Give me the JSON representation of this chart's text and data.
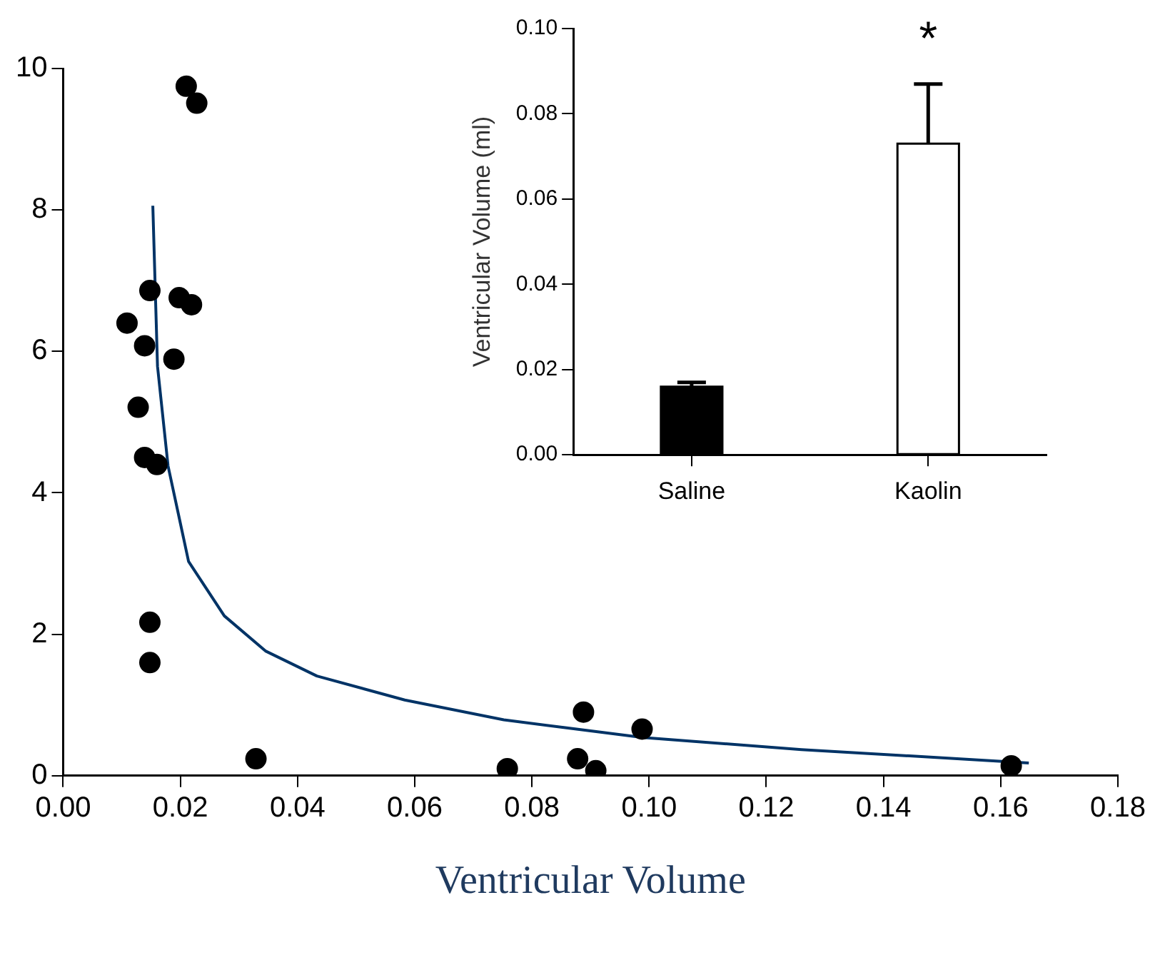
{
  "chart_data": [
    {
      "type": "scatter",
      "xlabel": "Ventricular Volume",
      "xlim": [
        0,
        0.18
      ],
      "xticks": [
        {
          "value": 0,
          "label": "0.00"
        },
        {
          "value": 0.02,
          "label": "0.02"
        },
        {
          "value": 0.04,
          "label": "0.04"
        },
        {
          "value": 0.06,
          "label": "0.06"
        },
        {
          "value": 0.08,
          "label": "0.08"
        },
        {
          "value": 0.1,
          "label": "0.10"
        },
        {
          "value": 0.12,
          "label": "0.12"
        },
        {
          "value": 0.14,
          "label": "0.14"
        },
        {
          "value": 0.16,
          "label": "0.16"
        },
        {
          "value": 0.18,
          "label": "0.18"
        }
      ],
      "ylim": [
        0,
        10
      ],
      "yticks": [
        0,
        2,
        4,
        6,
        8,
        10
      ],
      "series": [
        {
          "type": "scatter",
          "marker": "circle",
          "color": "#000000",
          "x": [
            0.021,
            0.0228,
            0.0148,
            0.0109,
            0.0139,
            0.0198,
            0.0219,
            0.0189,
            0.0128,
            0.0139,
            0.016,
            0.0148,
            0.0148,
            0.0329,
            0.0758,
            0.0888,
            0.0878,
            0.0909,
            0.0988,
            0.1618
          ],
          "values": [
            9.75,
            9.51,
            6.86,
            6.4,
            6.08,
            6.76,
            6.66,
            5.89,
            5.21,
            4.5,
            4.4,
            2.17,
            1.6,
            0.24,
            0.1,
            0.9,
            0.24,
            0.07,
            0.66,
            0.14
          ]
        },
        {
          "type": "line",
          "color": "#003366",
          "x": [
            0.0153,
            0.0161,
            0.0179,
            0.0214,
            0.0275,
            0.0346,
            0.0433,
            0.0583,
            0.0752,
            0.0989,
            0.126,
            0.1648
          ],
          "values": [
            8.06,
            5.79,
            4.38,
            3.03,
            2.26,
            1.76,
            1.41,
            1.07,
            0.79,
            0.54,
            0.37,
            0.18
          ]
        }
      ]
    },
    {
      "type": "bar",
      "ylabel": "Ventricular Volume (ml)",
      "categories": [
        "Saline",
        "Kaolin"
      ],
      "values": [
        0.016,
        0.073
      ],
      "colors": [
        "#000000",
        "#ffffff"
      ],
      "errors": [
        [
          0.016,
          0.017
        ],
        [
          0.073,
          0.087
        ]
      ],
      "ylim": [
        0,
        0.1
      ],
      "yticks": [
        {
          "value": 0,
          "label": "0.00"
        },
        {
          "value": 0.02,
          "label": "0.02"
        },
        {
          "value": 0.04,
          "label": "0.04"
        },
        {
          "value": 0.06,
          "label": "0.06"
        },
        {
          "value": 0.08,
          "label": "0.08"
        },
        {
          "value": 0.1,
          "label": "0.10"
        }
      ],
      "annotations": [
        "*"
      ]
    }
  ]
}
